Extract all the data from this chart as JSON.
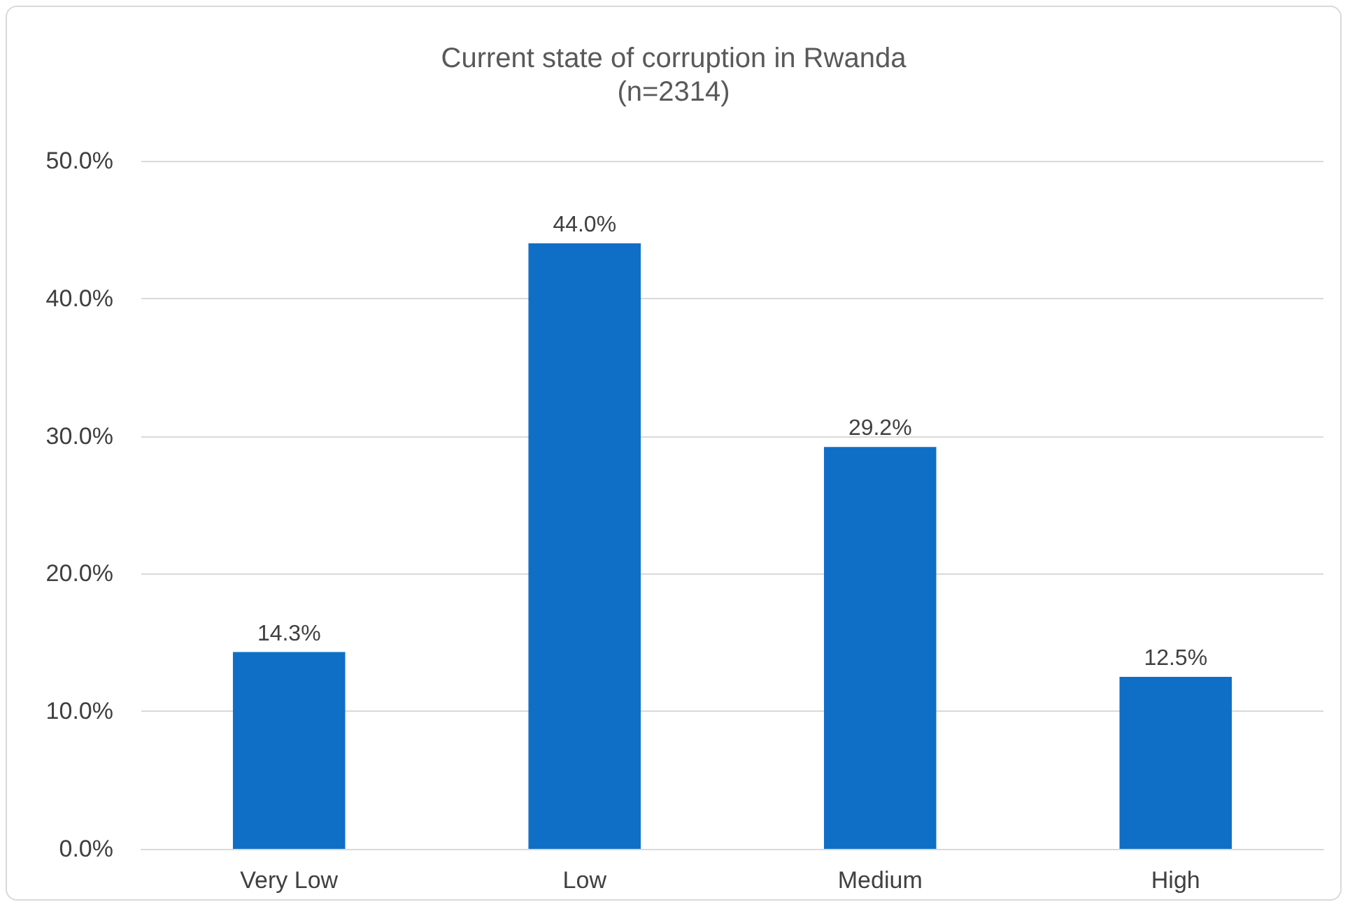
{
  "chart_data": {
    "type": "bar",
    "title": "Current state of corruption in Rwanda",
    "subtitle": "(n=2314)",
    "categories": [
      "Very Low",
      "Low",
      "Medium",
      "High"
    ],
    "values": [
      14.3,
      44.0,
      29.2,
      12.5
    ],
    "value_labels": [
      "14.3%",
      "44.0%",
      "29.2%",
      "12.5%"
    ],
    "color": "#0f6fc6",
    "ylim": [
      0,
      50
    ],
    "yticks": [
      {
        "value": 0,
        "label": "0.0%"
      },
      {
        "value": 10,
        "label": "10.0%"
      },
      {
        "value": 20,
        "label": "20.0%"
      },
      {
        "value": 30,
        "label": "30.0%"
      },
      {
        "value": 40,
        "label": "40.0%"
      },
      {
        "value": 50,
        "label": "50.0%"
      }
    ],
    "grid": true
  }
}
